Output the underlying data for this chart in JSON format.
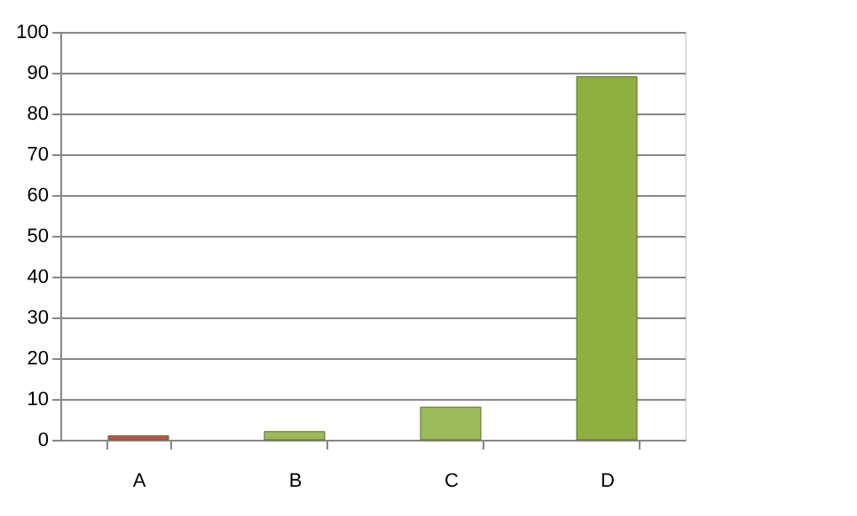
{
  "chart_data": {
    "type": "bar",
    "categories": [
      "A",
      "B",
      "C",
      "D"
    ],
    "values": [
      1,
      2,
      8,
      89
    ],
    "colors": [
      "#c0504d",
      "#9bbb59",
      "#9bbb59",
      "#8fb040"
    ],
    "ylim": [
      0,
      100
    ],
    "yticks": [
      0,
      10,
      20,
      30,
      40,
      50,
      60,
      70,
      80,
      90,
      100
    ],
    "grid": "y"
  }
}
